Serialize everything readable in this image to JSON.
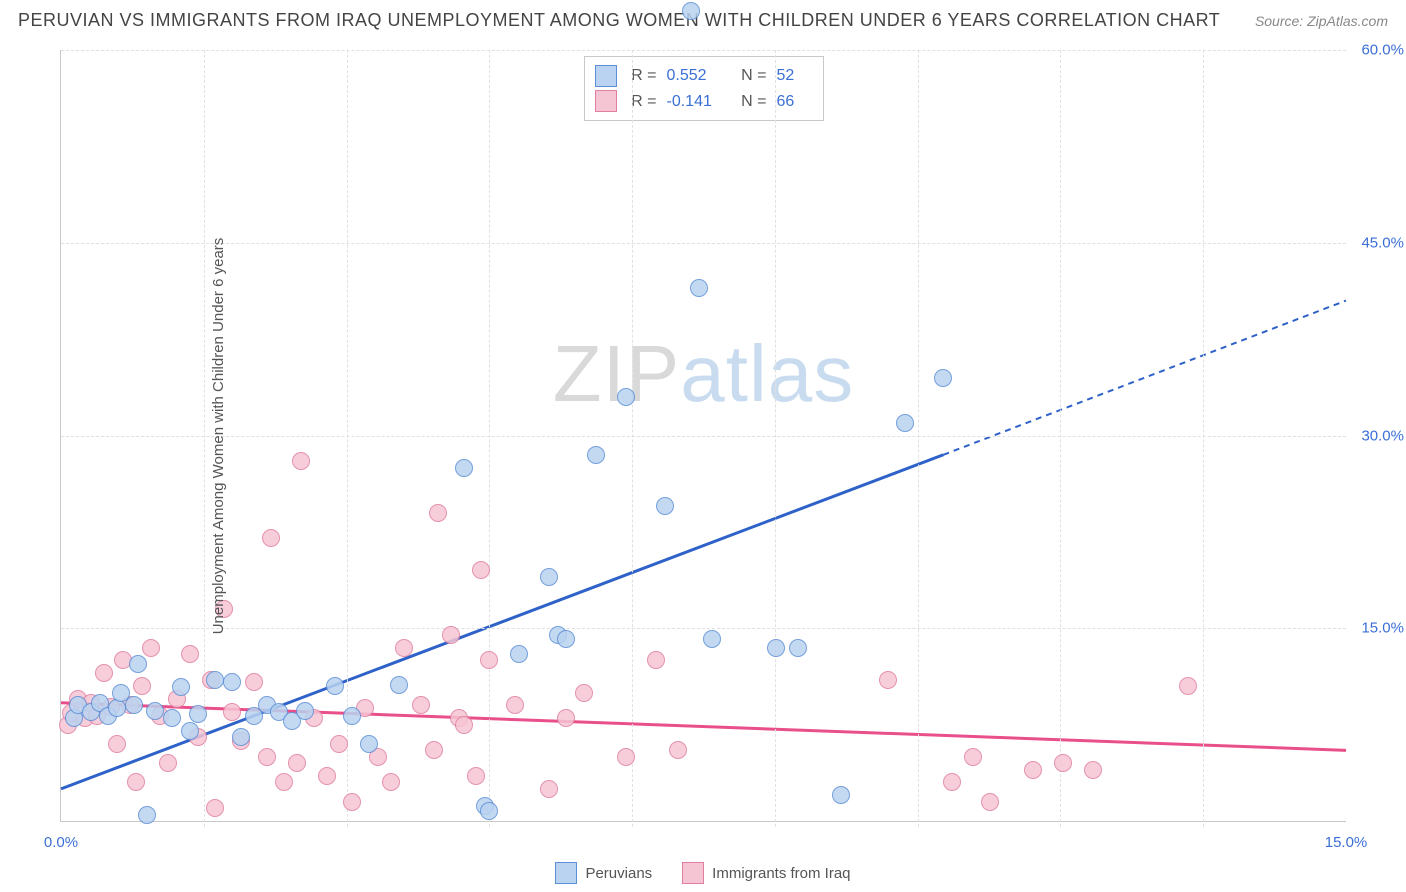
{
  "header": {
    "title": "PERUVIAN VS IMMIGRANTS FROM IRAQ UNEMPLOYMENT AMONG WOMEN WITH CHILDREN UNDER 6 YEARS CORRELATION CHART",
    "source": "Source: ZipAtlas.com"
  },
  "watermark": {
    "zip": "ZIP",
    "atlas": "atlas"
  },
  "chart": {
    "type": "scatter",
    "y_axis_label": "Unemployment Among Women with Children Under 6 years",
    "xlim": [
      0,
      15
    ],
    "ylim": [
      0,
      60
    ],
    "x_ticks": [
      "0.0%",
      "15.0%"
    ],
    "y_ticks": [
      {
        "v": 15,
        "label": "15.0%"
      },
      {
        "v": 30,
        "label": "30.0%"
      },
      {
        "v": 45,
        "label": "45.0%"
      },
      {
        "v": 60,
        "label": "60.0%"
      }
    ],
    "grid_v_count": 8,
    "grid_color": "#e0e0e0",
    "axis_color": "#c8c8c8",
    "background_color": "#ffffff",
    "tick_label_color": "#3b6fd6",
    "label_color": "#555555",
    "marker_radius": 9,
    "marker_border": 1,
    "series": {
      "peruvians": {
        "label": "Peruvians",
        "fill": "#b9d3f0",
        "stroke": "#5c8fd6",
        "line_color": "#2e62c9",
        "R": "0.552",
        "N": "52",
        "reg_start": [
          0,
          2.5
        ],
        "reg_solid_end": [
          10.3,
          28.5
        ],
        "reg_dash_end": [
          15,
          40.5
        ],
        "points": [
          [
            0.15,
            8.0
          ],
          [
            0.2,
            9.0
          ],
          [
            0.35,
            8.5
          ],
          [
            0.45,
            9.2
          ],
          [
            0.55,
            8.2
          ],
          [
            0.65,
            8.8
          ],
          [
            0.7,
            10.0
          ],
          [
            0.85,
            9.0
          ],
          [
            0.9,
            12.2
          ],
          [
            1.0,
            0.5
          ],
          [
            1.1,
            8.6
          ],
          [
            1.3,
            8.0
          ],
          [
            1.4,
            10.4
          ],
          [
            1.5,
            7.0
          ],
          [
            1.6,
            8.3
          ],
          [
            1.8,
            11.0
          ],
          [
            2.0,
            10.8
          ],
          [
            2.1,
            6.5
          ],
          [
            2.25,
            8.2
          ],
          [
            2.4,
            9.0
          ],
          [
            2.55,
            8.5
          ],
          [
            2.7,
            7.8
          ],
          [
            2.85,
            8.6
          ],
          [
            3.2,
            10.5
          ],
          [
            3.4,
            8.2
          ],
          [
            3.6,
            6.0
          ],
          [
            3.95,
            10.6
          ],
          [
            4.7,
            27.5
          ],
          [
            4.95,
            1.2
          ],
          [
            5.0,
            0.8
          ],
          [
            5.35,
            13.0
          ],
          [
            5.7,
            19.0
          ],
          [
            5.8,
            14.5
          ],
          [
            5.9,
            14.2
          ],
          [
            6.25,
            28.5
          ],
          [
            6.6,
            33.0
          ],
          [
            7.05,
            24.5
          ],
          [
            7.35,
            63.0
          ],
          [
            7.45,
            41.5
          ],
          [
            7.6,
            14.2
          ],
          [
            8.35,
            13.5
          ],
          [
            8.6,
            13.5
          ],
          [
            9.1,
            2.0
          ],
          [
            9.85,
            31.0
          ],
          [
            10.3,
            34.5
          ]
        ]
      },
      "iraq": {
        "label": "Immigrants from Iraq",
        "fill": "#f6c5d4",
        "stroke": "#e07fa0",
        "line_color": "#e94f8a",
        "R": "-0.141",
        "N": "66",
        "reg_start": [
          0,
          9.2
        ],
        "reg_solid_end": [
          15,
          5.5
        ],
        "reg_dash_end": null,
        "points": [
          [
            0.08,
            7.5
          ],
          [
            0.12,
            8.4
          ],
          [
            0.2,
            9.5
          ],
          [
            0.28,
            8.0
          ],
          [
            0.35,
            9.2
          ],
          [
            0.42,
            8.2
          ],
          [
            0.5,
            11.5
          ],
          [
            0.58,
            8.9
          ],
          [
            0.65,
            6.0
          ],
          [
            0.72,
            12.5
          ],
          [
            0.8,
            9.0
          ],
          [
            0.88,
            3.0
          ],
          [
            0.95,
            10.5
          ],
          [
            1.05,
            13.5
          ],
          [
            1.15,
            8.2
          ],
          [
            1.25,
            4.5
          ],
          [
            1.35,
            9.5
          ],
          [
            1.5,
            13.0
          ],
          [
            1.6,
            6.5
          ],
          [
            1.75,
            11.0
          ],
          [
            1.8,
            1.0
          ],
          [
            1.9,
            16.5
          ],
          [
            2.0,
            8.5
          ],
          [
            2.1,
            6.2
          ],
          [
            2.25,
            10.8
          ],
          [
            2.4,
            5.0
          ],
          [
            2.45,
            22.0
          ],
          [
            2.6,
            3.0
          ],
          [
            2.75,
            4.5
          ],
          [
            2.8,
            28.0
          ],
          [
            2.95,
            8.0
          ],
          [
            3.1,
            3.5
          ],
          [
            3.25,
            6.0
          ],
          [
            3.4,
            1.5
          ],
          [
            3.55,
            8.8
          ],
          [
            3.7,
            5.0
          ],
          [
            3.85,
            3.0
          ],
          [
            4.0,
            13.5
          ],
          [
            4.2,
            9.0
          ],
          [
            4.35,
            5.5
          ],
          [
            4.4,
            24.0
          ],
          [
            4.55,
            14.5
          ],
          [
            4.65,
            8.0
          ],
          [
            4.7,
            7.5
          ],
          [
            4.85,
            3.5
          ],
          [
            4.9,
            19.5
          ],
          [
            5.0,
            12.5
          ],
          [
            5.3,
            9.0
          ],
          [
            5.7,
            2.5
          ],
          [
            5.9,
            8.0
          ],
          [
            6.1,
            10.0
          ],
          [
            6.6,
            5.0
          ],
          [
            6.95,
            12.5
          ],
          [
            7.2,
            5.5
          ],
          [
            9.65,
            11.0
          ],
          [
            10.4,
            3.0
          ],
          [
            10.65,
            5.0
          ],
          [
            10.85,
            1.5
          ],
          [
            11.35,
            4.0
          ],
          [
            11.7,
            4.5
          ],
          [
            12.05,
            4.0
          ],
          [
            13.15,
            10.5
          ]
        ]
      }
    }
  },
  "stats_labels": {
    "R": "R =",
    "N": "N ="
  },
  "legend": {
    "peruvians": "Peruvians",
    "iraq": "Immigrants from Iraq"
  }
}
